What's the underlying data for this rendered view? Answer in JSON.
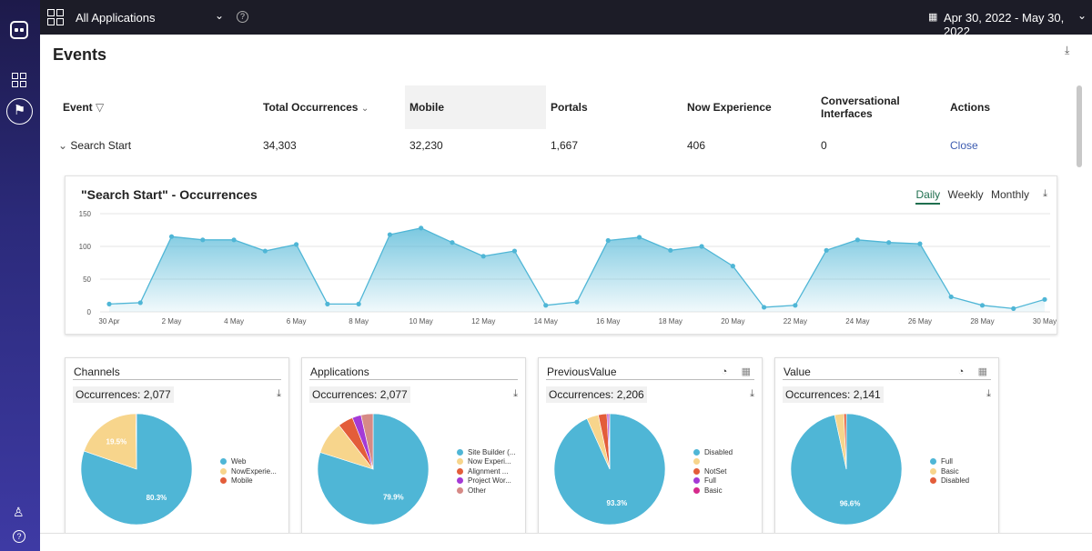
{
  "topbar": {
    "app_selector": "All Applications",
    "date_range": "Apr 30, 2022 - May 30, 2022"
  },
  "page": {
    "title": "Events"
  },
  "table": {
    "headers": [
      "Event",
      "Total Occurrences",
      "Mobile",
      "Portals",
      "Now Experience",
      "Conversational Interfaces",
      "Actions"
    ],
    "row": {
      "event": "Search Start",
      "total": "34,303",
      "mobile": "32,230",
      "portals": "1,667",
      "now_experience": "406",
      "conversational": "0",
      "action": "Close"
    }
  },
  "occurrences_chart": {
    "title": "\"Search Start\" - Occurrences",
    "tabs": [
      "Daily",
      "Weekly",
      "Monthly"
    ],
    "active_tab": "Daily",
    "chart_data": {
      "type": "area",
      "x": [
        "30 Apr",
        "1 May",
        "2 May",
        "3 May",
        "4 May",
        "5 May",
        "6 May",
        "7 May",
        "8 May",
        "9 May",
        "10 May",
        "11 May",
        "12 May",
        "13 May",
        "14 May",
        "15 May",
        "16 May",
        "17 May",
        "18 May",
        "19 May",
        "20 May",
        "21 May",
        "22 May",
        "23 May",
        "24 May",
        "25 May",
        "26 May",
        "27 May",
        "28 May",
        "29 May",
        "30 May"
      ],
      "x_tick_labels": [
        "30 Apr",
        "2 May",
        "4 May",
        "6 May",
        "8 May",
        "10 May",
        "12 May",
        "14 May",
        "16 May",
        "18 May",
        "20 May",
        "22 May",
        "24 May",
        "26 May",
        "28 May",
        "30 May"
      ],
      "values": [
        12,
        14,
        115,
        110,
        110,
        93,
        103,
        12,
        12,
        118,
        128,
        106,
        85,
        93,
        10,
        15,
        109,
        114,
        94,
        100,
        70,
        7,
        10,
        94,
        110,
        106,
        104,
        23,
        10,
        5,
        19
      ],
      "ylim": [
        0,
        150
      ],
      "yticks": [
        0,
        50,
        100,
        150
      ],
      "grid": true,
      "color": "#4fb6d6"
    }
  },
  "pie_charts": [
    {
      "title": "Channels",
      "occurrences": "Occurrences: 2,077",
      "show_icons": false,
      "chart_data": {
        "type": "pie",
        "slices": [
          {
            "label": "Web",
            "value": 80.3,
            "color": "#4fb6d6",
            "show": "80.3%"
          },
          {
            "label": "NowExperie...",
            "value": 19.5,
            "color": "#f7d58c",
            "show": "19.5%"
          },
          {
            "label": "Mobile",
            "value": 0.2,
            "color": "#e35d3a",
            "show": ""
          }
        ]
      }
    },
    {
      "title": "Applications",
      "occurrences": "Occurrences: 2,077",
      "show_icons": false,
      "chart_data": {
        "type": "pie",
        "slices": [
          {
            "label": "Site Builder (...",
            "value": 79.9,
            "color": "#4fb6d6",
            "show": "79.9%"
          },
          {
            "label": "Now Experi...",
            "value": 9.6,
            "color": "#f7d58c",
            "show": ""
          },
          {
            "label": "Alignment ...",
            "value": 4.4,
            "color": "#e35d3a",
            "show": ""
          },
          {
            "label": "Project Wor...",
            "value": 2.6,
            "color": "#a43ad6",
            "show": ""
          },
          {
            "label": "Other",
            "value": 3.5,
            "color": "#d68a86",
            "show": ""
          }
        ]
      }
    },
    {
      "title": "PreviousValue",
      "occurrences": "Occurrences: 2,206",
      "show_icons": true,
      "chart_data": {
        "type": "pie",
        "slices": [
          {
            "label": "Disabled",
            "value": 93.3,
            "color": "#4fb6d6",
            "show": "93.3%"
          },
          {
            "label": "",
            "value": 3.4,
            "color": "#f7d58c",
            "show": ""
          },
          {
            "label": "NotSet",
            "value": 2.5,
            "color": "#e35d3a",
            "show": ""
          },
          {
            "label": "Full",
            "value": 0.5,
            "color": "#a43ad6",
            "show": ""
          },
          {
            "label": "Basic",
            "value": 0.3,
            "color": "#d62a8c",
            "show": ""
          }
        ]
      }
    },
    {
      "title": "Value",
      "occurrences": "Occurrences: 2,141",
      "show_icons": true,
      "chart_data": {
        "type": "pie",
        "slices": [
          {
            "label": "Full",
            "value": 96.6,
            "color": "#4fb6d6",
            "show": "96.6%"
          },
          {
            "label": "Basic",
            "value": 2.7,
            "color": "#f7d58c",
            "show": ""
          },
          {
            "label": "Disabled",
            "value": 0.7,
            "color": "#e35d3a",
            "show": ""
          }
        ]
      }
    }
  ]
}
